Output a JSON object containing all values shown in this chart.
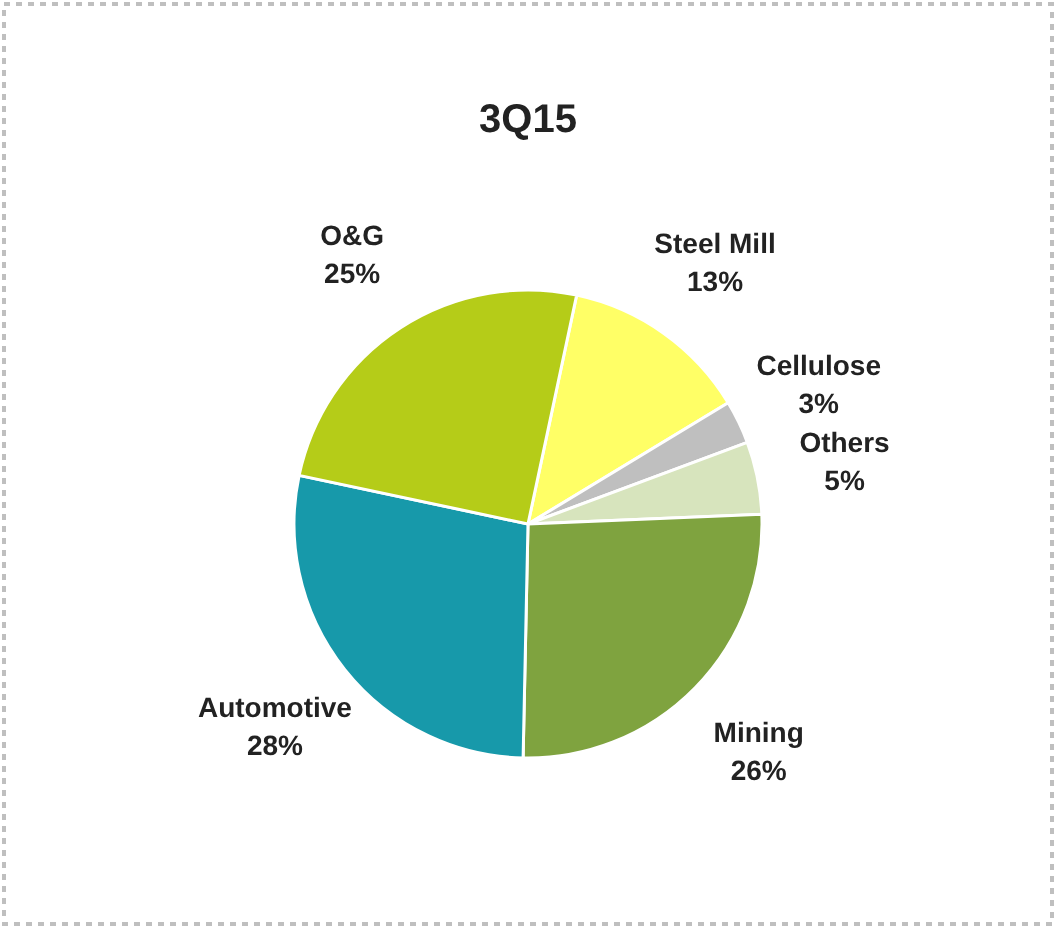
{
  "chart_data": {
    "type": "pie",
    "title": "3Q15",
    "categories": [
      "Steel Mill",
      "Cellulose",
      "Others",
      "Mining",
      "Automotive",
      "O&G"
    ],
    "values": [
      13,
      3,
      5,
      26,
      28,
      25
    ],
    "value_labels": [
      "13%",
      "3%",
      "5%",
      "26%",
      "28%",
      "25%"
    ],
    "colors": [
      "#ffff66",
      "#bfbfbf",
      "#d7e4bd",
      "#7fa33f",
      "#1799aa",
      "#b5cc18"
    ]
  }
}
